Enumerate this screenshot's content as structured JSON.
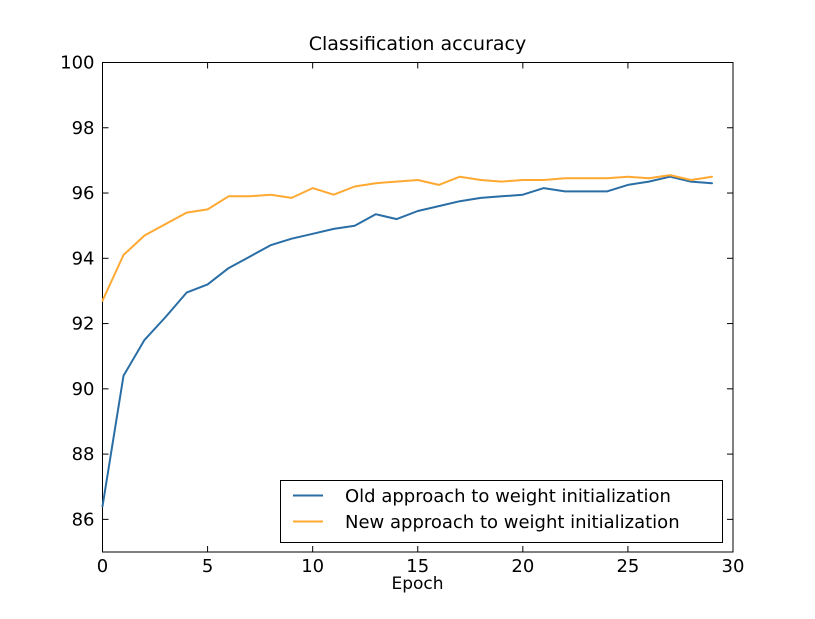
{
  "chart_data": {
    "type": "line",
    "title": "Classification accuracy",
    "xlabel": "Epoch",
    "ylabel": "",
    "xlim": [
      0,
      30
    ],
    "ylim": [
      85,
      100
    ],
    "xticks": [
      0,
      5,
      10,
      15,
      20,
      25,
      30
    ],
    "yticks": [
      86,
      88,
      90,
      92,
      94,
      96,
      98,
      100
    ],
    "grid": false,
    "legend": {
      "position": "lower right",
      "border": true
    },
    "x": [
      0,
      1,
      2,
      3,
      4,
      5,
      6,
      7,
      8,
      9,
      10,
      11,
      12,
      13,
      14,
      15,
      16,
      17,
      18,
      19,
      20,
      21,
      22,
      23,
      24,
      25,
      26,
      27,
      28,
      29
    ],
    "series": [
      {
        "name": "Old approach to weight initialization",
        "color": "#2A6EA6",
        "values": [
          86.4,
          90.4,
          91.5,
          92.2,
          92.95,
          93.2,
          93.7,
          94.05,
          94.4,
          94.6,
          94.75,
          94.9,
          95.0,
          95.35,
          95.2,
          95.45,
          95.6,
          95.75,
          95.85,
          95.9,
          95.95,
          96.15,
          96.05,
          96.05,
          96.05,
          96.25,
          96.35,
          96.5,
          96.35,
          96.3
        ]
      },
      {
        "name": "New approach to weight initialization",
        "color": "#FFA933",
        "values": [
          92.7,
          94.1,
          94.7,
          95.05,
          95.4,
          95.5,
          95.9,
          95.9,
          95.95,
          95.85,
          96.15,
          95.95,
          96.2,
          96.3,
          96.35,
          96.4,
          96.25,
          96.5,
          96.4,
          96.35,
          96.4,
          96.4,
          96.45,
          96.45,
          96.45,
          96.5,
          96.45,
          96.55,
          96.4,
          96.5
        ]
      }
    ]
  }
}
